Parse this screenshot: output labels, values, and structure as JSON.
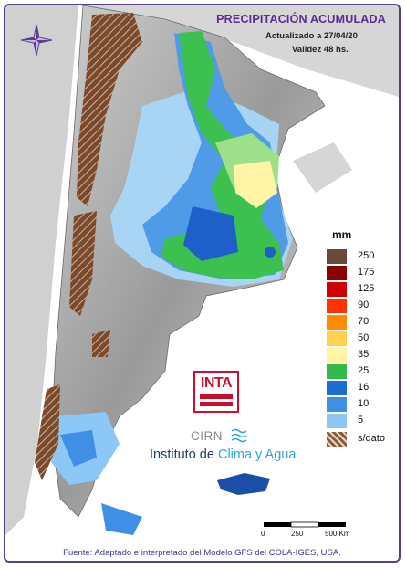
{
  "header": {
    "title": "PRECIPITACIÓN ACUMULADA",
    "updated": "Actualizado a 27/04/20",
    "validity": "Validez 48 hs."
  },
  "legend": {
    "unit": "mm",
    "items": [
      {
        "label": "250",
        "color": "#6b4a3a"
      },
      {
        "label": "175",
        "color": "#8b0000"
      },
      {
        "label": "125",
        "color": "#d10000"
      },
      {
        "label": "90",
        "color": "#ff3300"
      },
      {
        "label": "70",
        "color": "#ff8c00"
      },
      {
        "label": "50",
        "color": "#ffd24d"
      },
      {
        "label": "35",
        "color": "#fff5a0"
      },
      {
        "label": "25",
        "color": "#33b84a"
      },
      {
        "label": "16",
        "color": "#1a6fd1"
      },
      {
        "label": "10",
        "color": "#3f8fe6"
      },
      {
        "label": "5",
        "color": "#8cc7f5"
      },
      {
        "label": "s/dato",
        "color": "#8a5a3c"
      }
    ]
  },
  "logos": {
    "inta": "INTA",
    "cirn": "CIRN",
    "institute_prefix": "Instituto de ",
    "institute_highlight": "Clima y Agua"
  },
  "scale": {
    "labels": [
      "0",
      "250",
      "500 Km"
    ]
  },
  "source": "Fuente: Adaptado e interpretado del Modelo GFS del COLA-IGES, USA.",
  "colors": {
    "frame": "#5b3f8f",
    "title": "#5b2c91",
    "land": "#bfbfbf",
    "no_data": "#8a5a3c"
  }
}
